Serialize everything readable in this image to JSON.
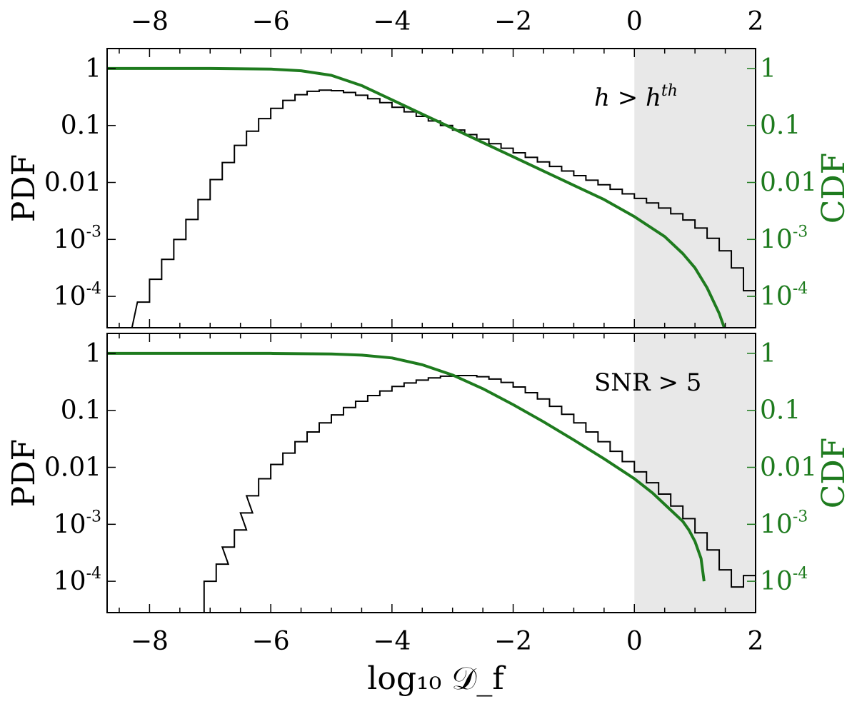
{
  "colors": {
    "pdf": "#000000",
    "cdf": "#1e7b1e",
    "shade": "#e8e8e8",
    "axis": "#000000"
  },
  "figure": {
    "top_axis_ticks": [
      "−8",
      "−6",
      "−4",
      "−2",
      "0",
      "2"
    ],
    "xlabel": "log₁₀ 𝒟_f"
  },
  "chart_data": [
    {
      "type": "line",
      "panel": "top",
      "annotation": "h > h^th",
      "annotation_base": "h > h",
      "annotation_sup": "th",
      "ylabel_left": "PDF",
      "ylabel_right": "CDF",
      "xlim": [
        -8.7,
        2.0
      ],
      "ylim_log10": [
        -4.55,
        0.35
      ],
      "log_scale_y": true,
      "shaded_region": [
        0,
        2
      ],
      "x_ticks": [
        -8,
        -6,
        -4,
        -2,
        0,
        2
      ],
      "x_tick_labels": [
        "−8",
        "−6",
        "−4",
        "−2",
        "0",
        "2"
      ],
      "y_ticks_left": [
        0,
        -1,
        -2,
        -3,
        -4
      ],
      "y_tick_labels_left": [
        {
          "base": "1",
          "sup": ""
        },
        {
          "base": "0.1",
          "sup": ""
        },
        {
          "base": "0.01",
          "sup": ""
        },
        {
          "base": "10",
          "sup": "-3"
        },
        {
          "base": "10",
          "sup": "-4"
        }
      ],
      "y_ticks_right": [
        0,
        -1,
        -2,
        -3,
        -4
      ],
      "y_tick_labels_right": [
        {
          "base": "1",
          "sup": ""
        },
        {
          "base": "0.1",
          "sup": ""
        },
        {
          "base": "0.01",
          "sup": ""
        },
        {
          "base": "10",
          "sup": "-3"
        },
        {
          "base": "10",
          "sup": "-4"
        }
      ],
      "series": [
        {
          "kind": "histogram-step",
          "points": [
            [
              -8.5,
              -4.6
            ],
            [
              -8.2,
              -4.1
            ],
            [
              -8.0,
              -3.7
            ],
            [
              -7.8,
              -3.35
            ],
            [
              -7.6,
              -3.0
            ],
            [
              -7.4,
              -2.65
            ],
            [
              -7.2,
              -2.3
            ],
            [
              -7.0,
              -1.95
            ],
            [
              -6.8,
              -1.65
            ],
            [
              -6.6,
              -1.35
            ],
            [
              -6.4,
              -1.1
            ],
            [
              -6.2,
              -0.88
            ],
            [
              -6.0,
              -0.7
            ],
            [
              -5.8,
              -0.56
            ],
            [
              -5.6,
              -0.46
            ],
            [
              -5.4,
              -0.4
            ],
            [
              -5.2,
              -0.38
            ],
            [
              -5.0,
              -0.39
            ],
            [
              -4.8,
              -0.42
            ],
            [
              -4.6,
              -0.47
            ],
            [
              -4.4,
              -0.53
            ],
            [
              -4.2,
              -0.6
            ],
            [
              -4.0,
              -0.68
            ],
            [
              -3.8,
              -0.76
            ],
            [
              -3.6,
              -0.84
            ],
            [
              -3.4,
              -0.92
            ],
            [
              -3.2,
              -1.0
            ],
            [
              -3.0,
              -1.08
            ],
            [
              -2.8,
              -1.16
            ],
            [
              -2.6,
              -1.24
            ],
            [
              -2.4,
              -1.32
            ],
            [
              -2.2,
              -1.4
            ],
            [
              -2.0,
              -1.48
            ],
            [
              -1.8,
              -1.56
            ],
            [
              -1.6,
              -1.64
            ],
            [
              -1.4,
              -1.72
            ],
            [
              -1.2,
              -1.8
            ],
            [
              -1.0,
              -1.88
            ],
            [
              -0.8,
              -1.96
            ],
            [
              -0.6,
              -2.04
            ],
            [
              -0.4,
              -2.12
            ],
            [
              -0.2,
              -2.2
            ],
            [
              0.0,
              -2.28
            ],
            [
              0.2,
              -2.36
            ],
            [
              0.4,
              -2.45
            ],
            [
              0.6,
              -2.55
            ],
            [
              0.8,
              -2.66
            ],
            [
              1.0,
              -2.8
            ],
            [
              1.2,
              -2.98
            ],
            [
              1.4,
              -3.2
            ],
            [
              1.6,
              -3.5
            ],
            [
              1.8,
              -3.9
            ]
          ]
        },
        {
          "kind": "cdf-line",
          "points": [
            [
              -8.7,
              0.0
            ],
            [
              -7.0,
              0.0
            ],
            [
              -6.0,
              -0.01
            ],
            [
              -5.5,
              -0.04
            ],
            [
              -5.0,
              -0.12
            ],
            [
              -4.5,
              -0.3
            ],
            [
              -4.0,
              -0.55
            ],
            [
              -3.5,
              -0.8
            ],
            [
              -3.0,
              -1.05
            ],
            [
              -2.5,
              -1.3
            ],
            [
              -2.0,
              -1.55
            ],
            [
              -1.5,
              -1.8
            ],
            [
              -1.0,
              -2.05
            ],
            [
              -0.5,
              -2.3
            ],
            [
              0.0,
              -2.6
            ],
            [
              0.5,
              -2.95
            ],
            [
              0.8,
              -3.25
            ],
            [
              1.0,
              -3.5
            ],
            [
              1.2,
              -3.85
            ],
            [
              1.4,
              -4.3
            ],
            [
              1.5,
              -4.6
            ]
          ]
        }
      ]
    },
    {
      "type": "line",
      "panel": "bottom",
      "annotation": "SNR > 5",
      "annotation_base": "SNR > 5",
      "annotation_sup": "",
      "ylabel_left": "PDF",
      "ylabel_right": "CDF",
      "xlim": [
        -8.7,
        2.0
      ],
      "ylim_log10": [
        -4.55,
        0.35
      ],
      "log_scale_y": true,
      "shaded_region": [
        0,
        2
      ],
      "x_ticks": [
        -8,
        -6,
        -4,
        -2,
        0,
        2
      ],
      "x_tick_labels": [
        "−8",
        "−6",
        "−4",
        "−2",
        "0",
        "2"
      ],
      "y_ticks_left": [
        0,
        -1,
        -2,
        -3,
        -4
      ],
      "y_tick_labels_left": [
        {
          "base": "1",
          "sup": ""
        },
        {
          "base": "0.1",
          "sup": ""
        },
        {
          "base": "0.01",
          "sup": ""
        },
        {
          "base": "10",
          "sup": "-3"
        },
        {
          "base": "10",
          "sup": "-4"
        }
      ],
      "y_ticks_right": [
        0,
        -1,
        -2,
        -3,
        -4
      ],
      "y_tick_labels_right": [
        {
          "base": "1",
          "sup": ""
        },
        {
          "base": "0.1",
          "sup": ""
        },
        {
          "base": "0.01",
          "sup": ""
        },
        {
          "base": "10",
          "sup": "-3"
        },
        {
          "base": "10",
          "sup": "-4"
        }
      ],
      "series": [
        {
          "kind": "histogram-step",
          "points": [
            [
              -7.1,
              -4.0
            ],
            [
              -6.9,
              -3.7
            ],
            [
              -6.8,
              -3.4
            ],
            [
              -6.6,
              -3.1
            ],
            [
              -6.5,
              -2.8
            ],
            [
              -6.4,
              -2.5
            ],
            [
              -6.2,
              -2.2
            ],
            [
              -6.0,
              -1.95
            ],
            [
              -5.8,
              -1.75
            ],
            [
              -5.6,
              -1.55
            ],
            [
              -5.4,
              -1.38
            ],
            [
              -5.2,
              -1.22
            ],
            [
              -5.0,
              -1.08
            ],
            [
              -4.8,
              -0.95
            ],
            [
              -4.6,
              -0.84
            ],
            [
              -4.4,
              -0.74
            ],
            [
              -4.2,
              -0.66
            ],
            [
              -4.0,
              -0.58
            ],
            [
              -3.8,
              -0.52
            ],
            [
              -3.6,
              -0.47
            ],
            [
              -3.4,
              -0.43
            ],
            [
              -3.2,
              -0.4
            ],
            [
              -3.0,
              -0.39
            ],
            [
              -2.8,
              -0.39
            ],
            [
              -2.6,
              -0.41
            ],
            [
              -2.4,
              -0.45
            ],
            [
              -2.2,
              -0.51
            ],
            [
              -2.0,
              -0.59
            ],
            [
              -1.8,
              -0.69
            ],
            [
              -1.6,
              -0.8
            ],
            [
              -1.4,
              -0.93
            ],
            [
              -1.2,
              -1.07
            ],
            [
              -1.0,
              -1.22
            ],
            [
              -0.8,
              -1.38
            ],
            [
              -0.6,
              -1.55
            ],
            [
              -0.4,
              -1.72
            ],
            [
              -0.2,
              -1.9
            ],
            [
              0.0,
              -2.08
            ],
            [
              0.2,
              -2.27
            ],
            [
              0.4,
              -2.47
            ],
            [
              0.6,
              -2.68
            ],
            [
              0.8,
              -2.9
            ],
            [
              1.0,
              -3.15
            ],
            [
              1.2,
              -3.45
            ],
            [
              1.4,
              -3.8
            ],
            [
              1.6,
              -4.1
            ],
            [
              1.8,
              -3.9
            ]
          ]
        },
        {
          "kind": "cdf-line",
          "points": [
            [
              -8.7,
              0.0
            ],
            [
              -6.0,
              0.0
            ],
            [
              -5.0,
              -0.01
            ],
            [
              -4.5,
              -0.03
            ],
            [
              -4.0,
              -0.08
            ],
            [
              -3.5,
              -0.2
            ],
            [
              -3.0,
              -0.38
            ],
            [
              -2.5,
              -0.62
            ],
            [
              -2.0,
              -0.9
            ],
            [
              -1.5,
              -1.2
            ],
            [
              -1.0,
              -1.52
            ],
            [
              -0.5,
              -1.85
            ],
            [
              0.0,
              -2.2
            ],
            [
              0.3,
              -2.45
            ],
            [
              0.6,
              -2.75
            ],
            [
              0.8,
              -2.95
            ],
            [
              0.9,
              -3.1
            ],
            [
              1.0,
              -3.3
            ],
            [
              1.1,
              -3.6
            ],
            [
              1.15,
              -4.0
            ]
          ]
        }
      ]
    }
  ]
}
